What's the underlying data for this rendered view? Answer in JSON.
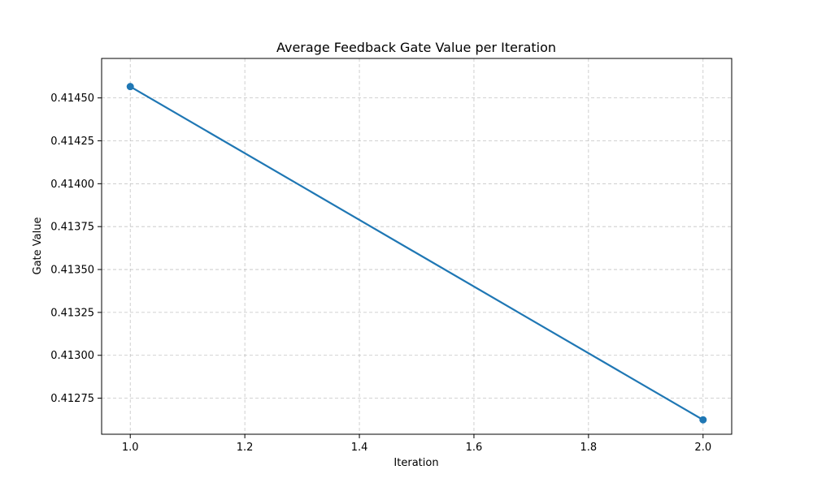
{
  "chart_data": {
    "type": "line",
    "title": "Average Feedback Gate Value per Iteration",
    "xlabel": "Iteration",
    "ylabel": "Gate Value",
    "x_ticks": [
      "1.0",
      "1.2",
      "1.4",
      "1.6",
      "1.8",
      "2.0"
    ],
    "y_ticks": [
      "0.41275",
      "0.41300",
      "0.41325",
      "0.41350",
      "0.41375",
      "0.41400",
      "0.41425",
      "0.41450"
    ],
    "xlim": [
      0.95,
      2.05
    ],
    "ylim": [
      0.41254,
      0.41473
    ],
    "grid": true,
    "series": [
      {
        "x": [
          1.0,
          2.0
        ],
        "values": [
          0.414566,
          0.412624
        ],
        "color": "#1f77b4",
        "marker": "circle"
      }
    ]
  }
}
